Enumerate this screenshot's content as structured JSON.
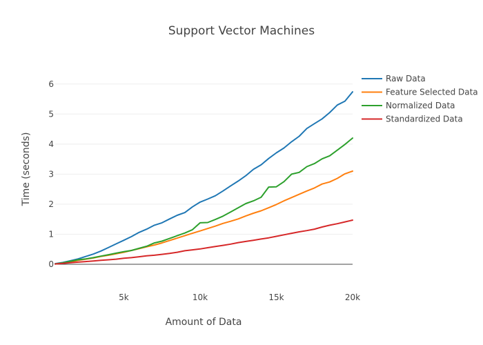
{
  "chart_data": {
    "type": "line",
    "title": "Support Vector Machines",
    "xlabel": "Amount of Data",
    "ylabel": "Time (seconds)",
    "xlim": [
      500,
      20000
    ],
    "ylim": [
      -0.85,
      6.5
    ],
    "x_ticks": [
      5000,
      10000,
      15000,
      20000
    ],
    "x_tick_labels": [
      "5k",
      "10k",
      "15k",
      "20k"
    ],
    "y_ticks": [
      0,
      1,
      2,
      3,
      4,
      5,
      6
    ],
    "y_tick_labels": [
      "0",
      "1",
      "2",
      "3",
      "4",
      "5",
      "6"
    ],
    "grid": "horizontal",
    "legend_position": "top-right",
    "x": [
      500,
      1000,
      1500,
      2000,
      2500,
      3000,
      3500,
      4000,
      4500,
      5000,
      5500,
      6000,
      6500,
      7000,
      7500,
      8000,
      8500,
      9000,
      9500,
      10000,
      10500,
      11000,
      11500,
      12000,
      12500,
      13000,
      13500,
      14000,
      14500,
      15000,
      15500,
      16000,
      16500,
      17000,
      17500,
      18000,
      18500,
      19000,
      19500,
      20000
    ],
    "series": [
      {
        "name": "Raw Data",
        "color": "#1f77b4",
        "values": [
          0.02,
          0.06,
          0.12,
          0.18,
          0.26,
          0.34,
          0.44,
          0.56,
          0.68,
          0.8,
          0.92,
          1.06,
          1.17,
          1.3,
          1.38,
          1.51,
          1.63,
          1.72,
          1.91,
          2.07,
          2.17,
          2.28,
          2.44,
          2.61,
          2.77,
          2.95,
          3.16,
          3.31,
          3.52,
          3.71,
          3.87,
          4.08,
          4.26,
          4.52,
          4.68,
          4.84,
          5.05,
          5.3,
          5.43,
          5.74
        ]
      },
      {
        "name": "Feature Selected Data",
        "color": "#ff7f0e",
        "values": [
          0.01,
          0.04,
          0.08,
          0.13,
          0.17,
          0.21,
          0.26,
          0.3,
          0.35,
          0.4,
          0.46,
          0.52,
          0.58,
          0.64,
          0.71,
          0.79,
          0.87,
          0.95,
          1.03,
          1.11,
          1.19,
          1.27,
          1.36,
          1.43,
          1.51,
          1.61,
          1.7,
          1.78,
          1.88,
          1.99,
          2.11,
          2.22,
          2.33,
          2.44,
          2.54,
          2.67,
          2.74,
          2.86,
          3.01,
          3.1
        ]
      },
      {
        "name": "Normalized Data",
        "color": "#2ca02c",
        "values": [
          0.01,
          0.05,
          0.1,
          0.15,
          0.18,
          0.22,
          0.27,
          0.32,
          0.37,
          0.42,
          0.46,
          0.53,
          0.6,
          0.71,
          0.77,
          0.86,
          0.95,
          1.04,
          1.15,
          1.38,
          1.39,
          1.49,
          1.6,
          1.74,
          1.88,
          2.02,
          2.11,
          2.23,
          2.57,
          2.58,
          2.75,
          3.0,
          3.06,
          3.25,
          3.35,
          3.51,
          3.61,
          3.8,
          3.99,
          4.2
        ]
      },
      {
        "name": "Standardized Data",
        "color": "#d62728",
        "values": [
          0.01,
          0.03,
          0.05,
          0.07,
          0.09,
          0.11,
          0.13,
          0.15,
          0.17,
          0.2,
          0.22,
          0.25,
          0.28,
          0.3,
          0.33,
          0.36,
          0.4,
          0.45,
          0.48,
          0.51,
          0.55,
          0.59,
          0.63,
          0.67,
          0.72,
          0.76,
          0.8,
          0.84,
          0.88,
          0.93,
          0.98,
          1.03,
          1.08,
          1.12,
          1.17,
          1.24,
          1.3,
          1.35,
          1.41,
          1.47
        ]
      }
    ]
  }
}
